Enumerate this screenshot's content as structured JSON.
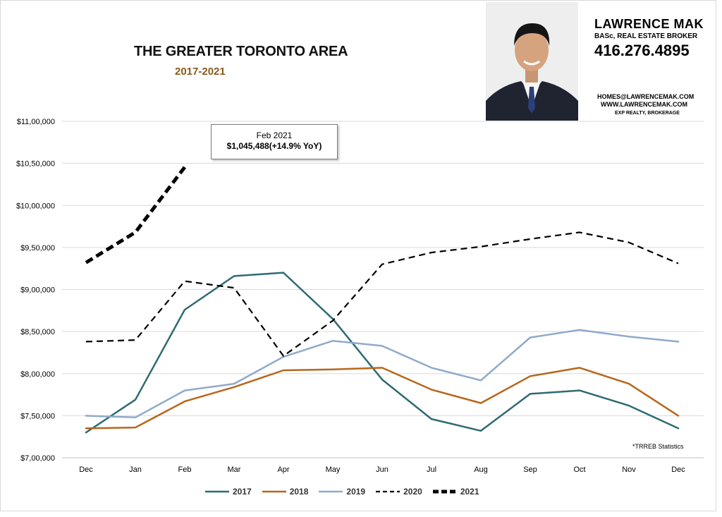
{
  "header": {
    "title": "THE GREATER TORONTO AREA",
    "subtitle": "2017-2021"
  },
  "contact": {
    "name": "LAWRENCE MAK",
    "role": "BASc, REAL ESTATE BROKER",
    "phone": "416.276.4895",
    "email": "HOMES@LAWRENCEMAK.COM",
    "website": "WWW.LAWRENCEMAK.COM",
    "brokerage": "EXP REALTY, BROKERAGE"
  },
  "callout": {
    "line1": "Feb 2021",
    "line2": "$1,045,488(+14.9%  YoY)"
  },
  "source_note": "*TRREB Statistics",
  "colors": {
    "s2017": "#2e6b74",
    "s2018": "#b8661c",
    "s2019": "#8faacb",
    "s2020": "#000000",
    "s2021": "#000000",
    "grid": "#d9d9d9"
  },
  "chart_data": {
    "type": "line",
    "title": "THE GREATER TORONTO AREA",
    "subtitle": "2017-2021",
    "xlabel": "",
    "ylabel": "",
    "categories": [
      "Dec",
      "Jan",
      "Feb",
      "Mar",
      "Apr",
      "May",
      "Jun",
      "Jul",
      "Aug",
      "Sep",
      "Oct",
      "Nov",
      "Dec"
    ],
    "ylim": [
      700000,
      1100000
    ],
    "yticks": [
      700000,
      750000,
      800000,
      850000,
      900000,
      950000,
      1000000,
      1050000,
      1100000
    ],
    "ytick_labels": [
      "$7,00,000",
      "$7,50,000",
      "$8,00,000",
      "$8,50,000",
      "$9,00,000",
      "$9,50,000",
      "$10,00,000",
      "$10,50,000",
      "$11,00,000"
    ],
    "grid": true,
    "legend_position": "bottom",
    "series": [
      {
        "name": "2017",
        "style": "solid",
        "values": [
          730000,
          769000,
          876000,
          916000,
          920000,
          865000,
          793000,
          746000,
          732000,
          776000,
          780000,
          762000,
          735000
        ]
      },
      {
        "name": "2018",
        "style": "solid",
        "values": [
          735000,
          736000,
          767000,
          784000,
          804000,
          805000,
          807000,
          781000,
          765000,
          797000,
          807000,
          788000,
          750000
        ]
      },
      {
        "name": "2019",
        "style": "solid",
        "values": [
          750000,
          748000,
          780000,
          788000,
          820000,
          839000,
          833000,
          807000,
          792000,
          843000,
          852000,
          844000,
          838000
        ]
      },
      {
        "name": "2020",
        "style": "dashed",
        "values": [
          838000,
          840000,
          910000,
          902000,
          821000,
          863000,
          930000,
          944000,
          951000,
          960000,
          968000,
          956000,
          931000
        ]
      },
      {
        "name": "2021",
        "style": "thick-dashed",
        "values": [
          932000,
          968000,
          1045488,
          null,
          null,
          null,
          null,
          null,
          null,
          null,
          null,
          null,
          null
        ]
      }
    ]
  }
}
